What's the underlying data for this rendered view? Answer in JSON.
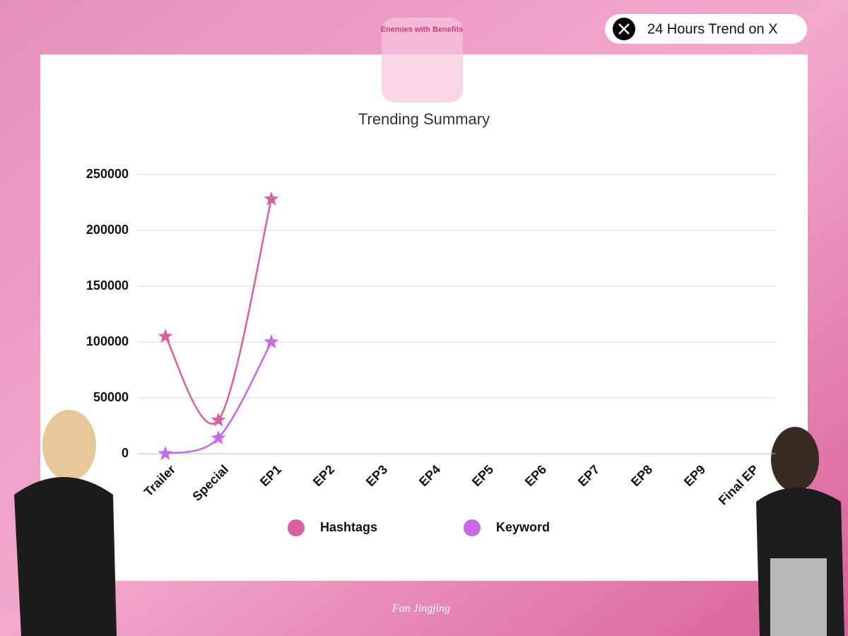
{
  "header": {
    "badge": "24 Hours Trend on X",
    "logo_text": "Enemies with Benefits"
  },
  "watermark": "Fan Jingjing",
  "chart_data": {
    "type": "line",
    "title": "Trending Summary",
    "categories": [
      "Trailer",
      "Special",
      "EP1",
      "EP2",
      "EP3",
      "EP4",
      "EP5",
      "EP6",
      "EP7",
      "EP8",
      "EP9",
      "Final EP"
    ],
    "series": [
      {
        "name": "Hashtags",
        "color": "#d95f9e",
        "values": [
          105000,
          30000,
          228000,
          null,
          null,
          null,
          null,
          null,
          null,
          null,
          null,
          null
        ]
      },
      {
        "name": "Keyword",
        "color": "#c86ae6",
        "values": [
          0,
          14000,
          100000,
          null,
          null,
          null,
          null,
          null,
          null,
          null,
          null,
          null
        ]
      }
    ],
    "ylim": [
      0,
      250000
    ],
    "yticks": [
      0,
      50000,
      100000,
      150000,
      200000,
      250000
    ],
    "grid": true,
    "legend": "bottom",
    "smooth": true
  }
}
